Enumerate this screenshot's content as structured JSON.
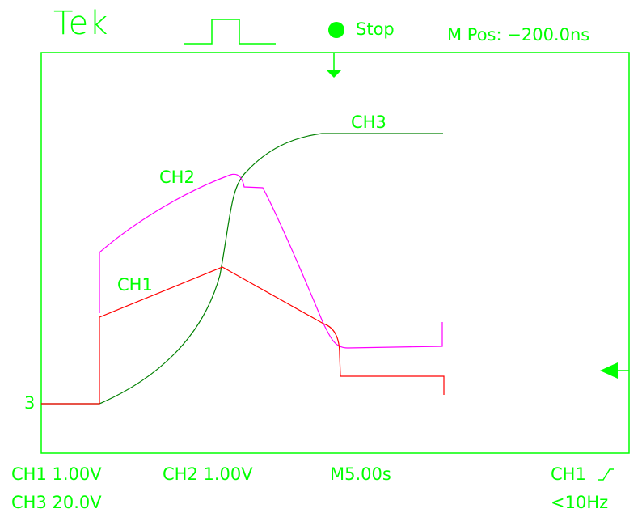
{
  "header": {
    "brand": "Tek",
    "run_state": "Stop",
    "trigger_position": "M Pos: −200.0ns"
  },
  "screen": {
    "ch3_label": "CH3",
    "ch2_label": "CH2",
    "ch1_label": "CH1",
    "ground_marker": "3"
  },
  "footer": {
    "ch1_scale": "CH1 1.00V",
    "ch2_scale": "CH2 1.00V",
    "timebase": "M5.00s",
    "trigger_source": "CH1",
    "ch3_scale": "CH3 20.0V",
    "trigger_freq": "<10Hz"
  },
  "colors": {
    "ui": "#00ff00",
    "ch1": "#ff0000",
    "ch2": "#ff00ff",
    "ch3": "#008000"
  }
}
